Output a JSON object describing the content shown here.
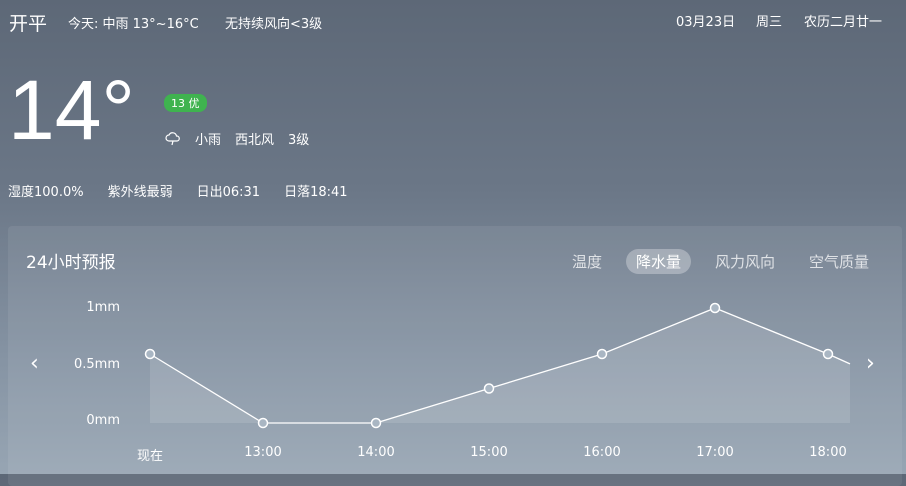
{
  "header": {
    "city": "开平",
    "today": "今天: 中雨 13°~16°C",
    "wind_today": "无持续风向<3级",
    "date": "03月23日",
    "weekday": "周三",
    "lunar": "农历二月廿一"
  },
  "current": {
    "temperature": "14°",
    "aqi_badge": "13 优",
    "aqi_color": "#3fb34f",
    "weather_icon": "cloud-rain-icon",
    "weather": "小雨",
    "wind_dir": "西北风",
    "wind_level": "3级"
  },
  "stats": {
    "humidity": "湿度100.0%",
    "uv": "紫外线最弱",
    "sunrise": "日出06:31",
    "sunset": "日落18:41"
  },
  "forecast": {
    "title": "24小时预报",
    "tabs": [
      "温度",
      "降水量",
      "风力风向",
      "空气质量"
    ],
    "active_tab": "降水量"
  },
  "chart_data": {
    "type": "area",
    "categories": [
      "现在",
      "13:00",
      "14:00",
      "15:00",
      "16:00",
      "17:00",
      "18:00"
    ],
    "values": [
      0.6,
      0,
      0,
      0.3,
      0.6,
      1.0,
      0.6
    ],
    "y_ticks": [
      "1mm",
      "0.5mm",
      "0mm"
    ],
    "ylim": [
      0,
      1
    ],
    "grid": false
  }
}
